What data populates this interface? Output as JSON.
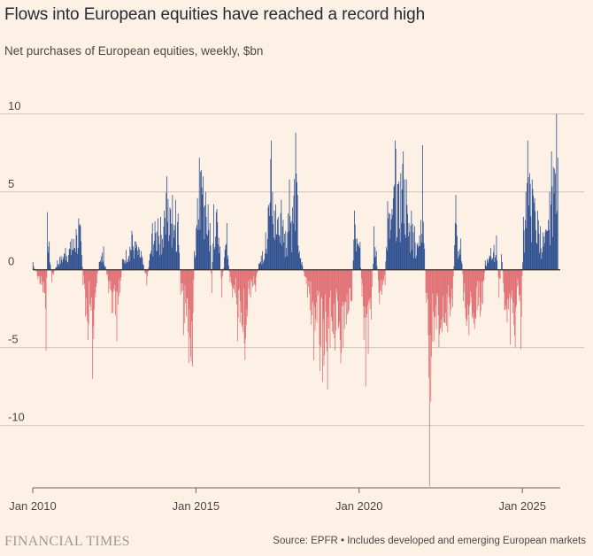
{
  "title": "Flows into European equities have reached a record high",
  "subtitle": "Net purchases of European equities, weekly, $bn",
  "footer": {
    "logo": "FINANCIAL TIMES",
    "source": "Source: EPFR • Includes developed and emerging European markets"
  },
  "colors": {
    "positive": "#2e4f8f",
    "negative": "#e06f73",
    "grid": "#cfc6bd",
    "zero_line": "#33302e",
    "background": "#fdf1e6"
  },
  "chart_data": {
    "type": "bar",
    "frequency": "weekly",
    "xlim": [
      "2010-01-01",
      "2026-03-01"
    ],
    "ylim": [
      -14,
      10.5
    ],
    "y_ticks": [
      10,
      5,
      0,
      -5,
      -10
    ],
    "y_tick_labels": [
      "10",
      "5",
      "0",
      "-5",
      "-10"
    ],
    "x_ticks": [
      "2010-01-01",
      "2015-01-01",
      "2020-01-01",
      "2025-01-01"
    ],
    "x_tick_labels": [
      "Jan 2010",
      "Jan 2015",
      "Jan 2020",
      "Jan 2025"
    ],
    "grid": true,
    "legend": "none",
    "anchors": [
      [
        "2010-01-03",
        0.5
      ],
      [
        "2010-03-01",
        -0.6
      ],
      [
        "2010-05-20",
        -2.5
      ],
      [
        "2010-05-27",
        -5.2
      ],
      [
        "2010-06-15",
        3.7
      ],
      [
        "2010-08-01",
        -0.8
      ],
      [
        "2010-10-01",
        0.6
      ],
      [
        "2011-01-01",
        1.4
      ],
      [
        "2011-03-15",
        2.0
      ],
      [
        "2011-05-01",
        2.6
      ],
      [
        "2011-06-01",
        3.3
      ],
      [
        "2011-06-20",
        2.8
      ],
      [
        "2011-07-20",
        -1.0
      ],
      [
        "2011-08-15",
        -3.0
      ],
      [
        "2011-09-10",
        -4.5
      ],
      [
        "2011-10-01",
        -2.2
      ],
      [
        "2011-11-01",
        -7.0
      ],
      [
        "2011-12-01",
        -1.8
      ],
      [
        "2012-01-15",
        0.5
      ],
      [
        "2012-03-01",
        1.5
      ],
      [
        "2012-05-01",
        -1.5
      ],
      [
        "2012-06-01",
        -2.8
      ],
      [
        "2012-08-01",
        -4.6
      ],
      [
        "2012-10-01",
        0.7
      ],
      [
        "2013-01-15",
        2.5
      ],
      [
        "2013-03-01",
        1.8
      ],
      [
        "2013-05-01",
        1.2
      ],
      [
        "2013-07-01",
        -1.0
      ],
      [
        "2013-09-01",
        3.0
      ],
      [
        "2013-11-01",
        3.3
      ],
      [
        "2014-01-15",
        3.8
      ],
      [
        "2014-02-10",
        6.0
      ],
      [
        "2014-03-15",
        4.0
      ],
      [
        "2014-04-15",
        4.8
      ],
      [
        "2014-05-15",
        4.5
      ],
      [
        "2014-06-15",
        3.6
      ],
      [
        "2014-07-15",
        -1.6
      ],
      [
        "2014-08-15",
        -4.2
      ],
      [
        "2014-09-15",
        -3.0
      ],
      [
        "2014-10-15",
        -6.0
      ],
      [
        "2014-11-20",
        -6.2
      ],
      [
        "2014-12-15",
        1.2
      ],
      [
        "2015-01-15",
        4.6
      ],
      [
        "2015-02-10",
        7.2
      ],
      [
        "2015-03-01",
        6.4
      ],
      [
        "2015-03-25",
        6.0
      ],
      [
        "2015-04-20",
        5.0
      ],
      [
        "2015-05-15",
        4.2
      ],
      [
        "2015-06-10",
        3.0
      ],
      [
        "2015-06-25",
        -1.5
      ],
      [
        "2015-07-20",
        4.2
      ],
      [
        "2015-08-20",
        3.9
      ],
      [
        "2015-09-25",
        1.5
      ],
      [
        "2015-10-15",
        -1.8
      ],
      [
        "2015-11-15",
        0.8
      ],
      [
        "2015-12-15",
        3.0
      ],
      [
        "2016-01-15",
        -0.8
      ],
      [
        "2016-02-15",
        -1.8
      ],
      [
        "2016-03-15",
        -1.5
      ],
      [
        "2016-04-10",
        -4.6
      ],
      [
        "2016-05-10",
        -3.4
      ],
      [
        "2016-06-10",
        -4.0
      ],
      [
        "2016-07-01",
        -5.8
      ],
      [
        "2016-08-01",
        -3.0
      ],
      [
        "2016-09-01",
        -1.8
      ],
      [
        "2016-10-01",
        -1.0
      ],
      [
        "2016-11-01",
        -1.4
      ],
      [
        "2016-12-01",
        0.4
      ],
      [
        "2017-01-15",
        1.2
      ],
      [
        "2017-02-20",
        2.4
      ],
      [
        "2017-03-20",
        4.0
      ],
      [
        "2017-04-20",
        8.3
      ],
      [
        "2017-05-10",
        5.0
      ],
      [
        "2017-06-10",
        4.2
      ],
      [
        "2017-07-10",
        3.4
      ],
      [
        "2017-08-10",
        4.5
      ],
      [
        "2017-09-01",
        3.2
      ],
      [
        "2017-10-01",
        2.5
      ],
      [
        "2017-11-15",
        5.8
      ],
      [
        "2017-12-15",
        4.0
      ],
      [
        "2018-01-20",
        8.8
      ],
      [
        "2018-02-10",
        4.8
      ],
      [
        "2018-03-01",
        1.2
      ],
      [
        "2018-04-01",
        0.5
      ],
      [
        "2018-05-01",
        -0.4
      ],
      [
        "2018-06-01",
        -1.8
      ],
      [
        "2018-07-01",
        -2.6
      ],
      [
        "2018-08-15",
        -5.8
      ],
      [
        "2018-09-15",
        -3.4
      ],
      [
        "2018-10-20",
        -6.5
      ],
      [
        "2018-11-20",
        -7.2
      ],
      [
        "2018-12-10",
        -5.5
      ],
      [
        "2019-01-10",
        -7.7
      ],
      [
        "2019-02-10",
        -5.0
      ],
      [
        "2019-03-10",
        -4.0
      ],
      [
        "2019-04-10",
        -5.2
      ],
      [
        "2019-05-10",
        -3.8
      ],
      [
        "2019-06-10",
        -6.0
      ],
      [
        "2019-07-10",
        -5.0
      ],
      [
        "2019-08-10",
        -3.5
      ],
      [
        "2019-09-10",
        -2.6
      ],
      [
        "2019-10-10",
        -2.0
      ],
      [
        "2019-11-10",
        3.8
      ],
      [
        "2019-12-10",
        2.0
      ],
      [
        "2020-01-10",
        1.8
      ],
      [
        "2020-02-20",
        -4.5
      ],
      [
        "2020-03-15",
        -7.5
      ],
      [
        "2020-04-15",
        -5.4
      ],
      [
        "2020-05-15",
        -3.2
      ],
      [
        "2020-06-15",
        2.8
      ],
      [
        "2020-07-15",
        1.2
      ],
      [
        "2020-08-15",
        -2.2
      ],
      [
        "2020-09-15",
        -1.6
      ],
      [
        "2020-10-15",
        -1.0
      ],
      [
        "2020-11-15",
        4.4
      ],
      [
        "2020-12-15",
        3.6
      ],
      [
        "2021-01-15",
        4.6
      ],
      [
        "2021-02-10",
        8.3
      ],
      [
        "2021-03-10",
        5.5
      ],
      [
        "2021-04-10",
        6.2
      ],
      [
        "2021-05-10",
        7.6
      ],
      [
        "2021-06-10",
        5.8
      ],
      [
        "2021-07-10",
        3.0
      ],
      [
        "2021-08-10",
        3.8
      ],
      [
        "2021-09-10",
        2.8
      ],
      [
        "2021-10-10",
        1.6
      ],
      [
        "2021-11-20",
        3.2
      ],
      [
        "2021-12-10",
        8.0
      ],
      [
        "2022-01-15",
        -1.5
      ],
      [
        "2022-02-15",
        -4.2
      ],
      [
        "2022-03-01",
        -13.9
      ],
      [
        "2022-03-20",
        -5.6
      ],
      [
        "2022-04-15",
        -4.6
      ],
      [
        "2022-05-15",
        -3.8
      ],
      [
        "2022-06-15",
        -5.0
      ],
      [
        "2022-07-15",
        -4.0
      ],
      [
        "2022-08-15",
        -3.4
      ],
      [
        "2022-09-15",
        -4.0
      ],
      [
        "2022-10-15",
        -3.0
      ],
      [
        "2022-11-15",
        -2.4
      ],
      [
        "2022-12-15",
        4.8
      ],
      [
        "2023-01-15",
        1.2
      ],
      [
        "2023-02-15",
        2.0
      ],
      [
        "2023-03-15",
        -2.0
      ],
      [
        "2023-04-15",
        -3.6
      ],
      [
        "2023-05-15",
        -4.2
      ],
      [
        "2023-06-15",
        -3.0
      ],
      [
        "2023-07-15",
        -3.8
      ],
      [
        "2023-08-15",
        -2.6
      ],
      [
        "2023-09-15",
        -3.0
      ],
      [
        "2023-10-15",
        -2.2
      ],
      [
        "2023-11-15",
        0.6
      ],
      [
        "2024-01-15",
        1.4
      ],
      [
        "2024-02-15",
        1.6
      ],
      [
        "2024-03-15",
        2.2
      ],
      [
        "2024-04-15",
        -1.8
      ],
      [
        "2024-05-15",
        1.0
      ],
      [
        "2024-06-15",
        -2.6
      ],
      [
        "2024-07-15",
        -3.4
      ],
      [
        "2024-08-15",
        -4.8
      ],
      [
        "2024-09-15",
        -2.8
      ],
      [
        "2024-10-15",
        -5.0
      ],
      [
        "2024-11-15",
        -1.0
      ],
      [
        "2024-12-15",
        -5.1
      ],
      [
        "2025-01-15",
        3.4
      ],
      [
        "2025-02-10",
        5.0
      ],
      [
        "2025-03-01",
        8.3
      ],
      [
        "2025-03-20",
        6.2
      ],
      [
        "2025-04-20",
        5.8
      ],
      [
        "2025-05-20",
        4.6
      ],
      [
        "2025-06-20",
        3.8
      ],
      [
        "2025-07-20",
        2.8
      ],
      [
        "2025-08-20",
        2.4
      ],
      [
        "2025-09-20",
        2.6
      ],
      [
        "2025-10-20",
        3.2
      ],
      [
        "2025-11-20",
        7.6
      ],
      [
        "2025-12-15",
        6.6
      ],
      [
        "2026-01-20",
        10.0
      ],
      [
        "2026-02-01",
        7.2
      ]
    ]
  }
}
